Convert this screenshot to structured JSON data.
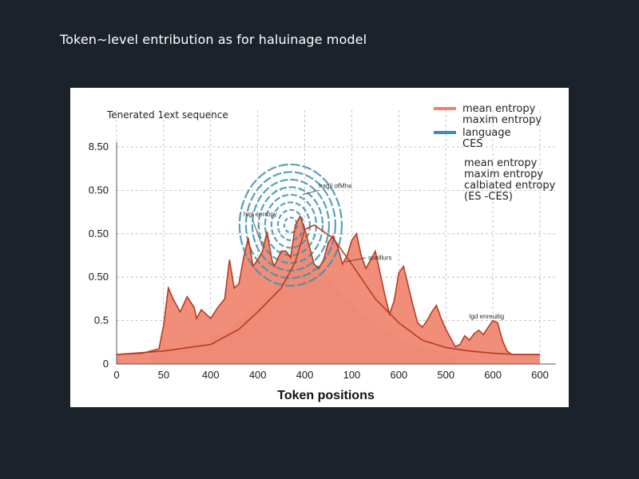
{
  "page": {
    "title": "Token∼level entribution as for haluinage model"
  },
  "colors": {
    "background": "#1c222b",
    "card": "#ffffff",
    "mean_fill": "#f0826a",
    "mean_line": "#b83a22",
    "language_line": "#3a8fb0",
    "spread_fill": "#c9c9c9",
    "grid": "#b5b5b5"
  },
  "chart_data": {
    "type": "area",
    "subtitle": "Tenerated 1ext sequence",
    "xlabel": "Token positions",
    "ylabel": "",
    "grid": true,
    "legend_position": "top-right",
    "x_tick_labels": [
      "0",
      "50",
      "400",
      "400",
      "400",
      "100",
      "600",
      "500",
      "600",
      "600"
    ],
    "y_tick_labels": [
      "8.50",
      "0.50",
      "0.50",
      "0.50",
      "0.5",
      "0"
    ],
    "series": [
      {
        "name": "mean entropy",
        "style": "filled-area",
        "x": [
          0,
          0.55,
          0.9,
          1.0,
          1.1,
          1.2,
          1.35,
          1.5,
          1.65,
          1.7,
          1.8,
          2.0,
          2.15,
          2.3,
          2.4,
          2.5,
          2.6,
          2.7,
          2.8,
          2.9,
          3.0,
          3.1,
          3.2,
          3.3,
          3.35,
          3.5,
          3.6,
          3.7,
          3.8,
          3.9,
          4.0,
          4.1,
          4.2,
          4.3,
          4.4,
          4.5,
          4.6,
          4.7,
          4.8,
          4.9,
          5.0,
          5.1,
          5.2,
          5.3,
          5.4,
          5.5,
          5.6,
          5.7,
          5.8,
          5.9,
          6.0,
          6.1,
          6.2,
          6.3,
          6.4,
          6.5,
          6.6,
          6.7,
          6.8,
          6.9,
          7.0,
          7.1,
          7.2,
          7.3,
          7.4,
          7.5,
          7.6,
          7.7,
          7.8,
          7.9,
          8.0,
          8.1,
          8.2,
          8.3,
          8.4,
          8.5,
          8.6,
          8.7,
          8.8,
          8.9,
          9.0
        ],
        "y": [
          0.22,
          0.25,
          0.35,
          0.9,
          1.75,
          1.5,
          1.2,
          1.55,
          1.3,
          1.05,
          1.25,
          1.05,
          1.3,
          1.5,
          2.4,
          1.75,
          1.85,
          2.45,
          2.9,
          2.25,
          2.4,
          2.6,
          3.05,
          2.4,
          2.25,
          2.6,
          2.6,
          2.45,
          3.2,
          3.4,
          3.1,
          2.7,
          2.3,
          2.2,
          2.4,
          2.8,
          2.95,
          2.7,
          2.3,
          2.5,
          2.85,
          3.0,
          2.5,
          2.2,
          2.4,
          2.6,
          2.1,
          1.6,
          1.15,
          1.45,
          2.1,
          2.25,
          1.8,
          1.35,
          0.95,
          0.85,
          1.0,
          1.2,
          1.35,
          1.05,
          0.8,
          0.6,
          0.4,
          0.45,
          0.65,
          0.55,
          0.7,
          0.78,
          0.68,
          0.85,
          1.0,
          0.95,
          0.55,
          0.3,
          0.22,
          0.22,
          0.22,
          0.22,
          0.22,
          0.22,
          0.22
        ]
      },
      {
        "name": "maxim entropy",
        "style": "line",
        "x": [
          0,
          1.0,
          2.0,
          2.6,
          3.0,
          3.5,
          3.8,
          4.0,
          4.2,
          4.6,
          5.0,
          5.5,
          6.0,
          6.5,
          7.0,
          7.5,
          8.0,
          8.5,
          9.0
        ],
        "y": [
          0.22,
          0.3,
          0.45,
          0.8,
          1.2,
          1.75,
          2.35,
          3.1,
          3.2,
          2.9,
          2.3,
          1.5,
          0.95,
          0.55,
          0.38,
          0.3,
          0.25,
          0.22,
          0.22
        ]
      },
      {
        "name": "calbiated entropy (ES -CES)",
        "style": "gray-area",
        "x": [
          0.7,
          1.5,
          2.3,
          3.0,
          3.6,
          4.0,
          4.4,
          5.0,
          5.6,
          6.3,
          7.2
        ],
        "y": [
          0.22,
          0.4,
          0.75,
          1.35,
          2.0,
          2.45,
          2.1,
          1.4,
          0.85,
          0.45,
          0.22
        ]
      },
      {
        "name": "language",
        "style": "dashed-concentric",
        "center_x": 3.7,
        "center_y": 3.2,
        "rings": 8
      }
    ],
    "legend": [
      {
        "label": "mean entropy",
        "swatch": "#f0826a"
      },
      {
        "label": "maxim entropy",
        "swatch": ""
      },
      {
        "label": "language",
        "swatch": "#3a8fb0"
      },
      {
        "label": "CES",
        "swatch": ""
      },
      {
        "label": "mean entropy",
        "swatch": ""
      },
      {
        "label": "maxim entropy",
        "swatch": ""
      },
      {
        "label": "calbiated entropy",
        "swatch": ""
      },
      {
        "label": "(ES -CES)",
        "swatch": ""
      }
    ],
    "annotations": [
      {
        "text": "higl enrropy",
        "x": 2.7,
        "y": 3.4
      },
      {
        "text": "hagil ofMhe",
        "x": 4.3,
        "y": 4.05
      },
      {
        "text": "sonlllurs",
        "x": 5.35,
        "y": 2.4
      },
      {
        "text": "lgd enreuitig",
        "x": 7.5,
        "y": 1.05
      }
    ]
  }
}
